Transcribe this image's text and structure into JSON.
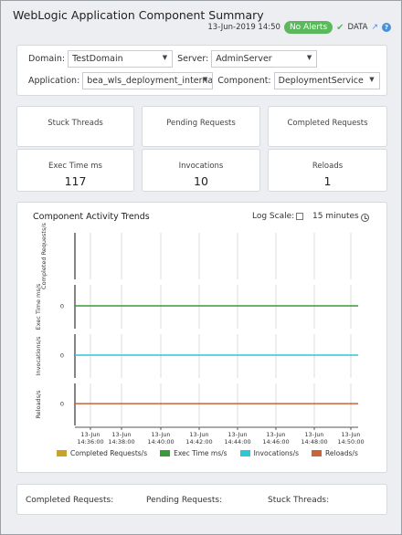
{
  "header": {
    "title": "WebLogic Application Component Summary",
    "timestamp": "13-Jun-2019 14:50",
    "alert_badge": "No Alerts",
    "data_label": "DATA",
    "help": "?"
  },
  "filters": {
    "domain_label": "Domain:",
    "domain_value": "TestDomain",
    "server_label": "Server:",
    "server_value": "AdminServer",
    "application_label": "Application:",
    "application_value": "bea_wls_deployment_internal",
    "component_label": "Component:",
    "component_value": "DeploymentService"
  },
  "kpis": [
    {
      "label": "Stuck Threads",
      "value": ""
    },
    {
      "label": "Pending Requests",
      "value": ""
    },
    {
      "label": "Completed Requests",
      "value": ""
    },
    {
      "label": "Exec Time ms",
      "value": "117"
    },
    {
      "label": "Invocations",
      "value": "10"
    },
    {
      "label": "Reloads",
      "value": "1"
    }
  ],
  "chart": {
    "title": "Component Activity Trends",
    "log_scale_label": "Log Scale:",
    "time_range": "15 minutes"
  },
  "chart_data": {
    "type": "line",
    "title": "Component Activity Trends",
    "x": [
      "13-Jun 14:36:00",
      "13-Jun 14:38:00",
      "13-Jun 14:40:00",
      "13-Jun 14:42:00",
      "13-Jun 14:44:00",
      "13-Jun 14:46:00",
      "13-Jun 14:48:00",
      "13-Jun 14:50:00"
    ],
    "x_tick_dates": [
      "13-Jun",
      "13-Jun",
      "13-Jun",
      "13-Jun",
      "13-Jun",
      "13-Jun",
      "13-Jun",
      "13-Jun"
    ],
    "x_tick_times": [
      "14:36:00",
      "14:38:00",
      "14:40:00",
      "14:42:00",
      "14:44:00",
      "14:46:00",
      "14:48:00",
      "14:50:00"
    ],
    "panels": [
      {
        "ylabel": "Completed Requests/s",
        "color": "#c9a227",
        "values": [],
        "tick": ""
      },
      {
        "ylabel": "Exec Time ms/s",
        "color": "#3a9a3a",
        "values": [
          0,
          0,
          0,
          0,
          0,
          0,
          0,
          0
        ],
        "tick": "0"
      },
      {
        "ylabel": "Invocations/s",
        "color": "#2ec7d6",
        "values": [
          0,
          0,
          0,
          0,
          0,
          0,
          0,
          0
        ],
        "tick": "0"
      },
      {
        "ylabel": "Reloads/s",
        "color": "#c8643a",
        "values": [
          0,
          0,
          0,
          0,
          0,
          0,
          0,
          0
        ],
        "tick": "0"
      }
    ],
    "legend": [
      {
        "name": "Completed Requests/s",
        "color": "#c9a227"
      },
      {
        "name": "Exec Time ms/s",
        "color": "#3a9a3a"
      },
      {
        "name": "Invocations/s",
        "color": "#2ec7d6"
      },
      {
        "name": "Reloads/s",
        "color": "#c8643a"
      }
    ]
  },
  "footer": {
    "completed_label": "Completed Requests:",
    "pending_label": "Pending Requests:",
    "stuck_label": "Stuck Threads:"
  }
}
